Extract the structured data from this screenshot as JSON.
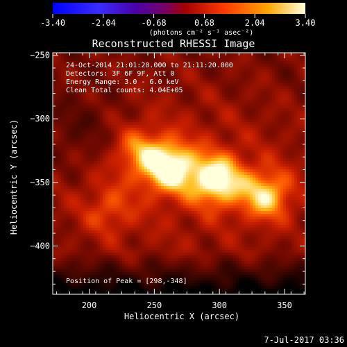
{
  "chart_data": {
    "type": "heatmap",
    "title": "Reconstructed RHESSI Image",
    "xlabel": "Heliocentric X (arcsec)",
    "ylabel": "Heliocentric Y (arcsec)",
    "xlim": [
      172,
      366
    ],
    "ylim": [
      -438,
      -248
    ],
    "x_ticks": [
      200,
      250,
      300,
      350
    ],
    "y_ticks": [
      -250,
      -300,
      -350,
      -400
    ],
    "colorbar": {
      "colormap": "red-temperature",
      "range": [
        -3.4,
        3.4
      ],
      "ticks": [
        "-3.40",
        "-2.04",
        "-0.68",
        "0.68",
        "2.04",
        "3.40"
      ],
      "unit": "(photons cm⁻² s⁻¹ asec⁻²)"
    },
    "info_lines": [
      "24-Oct-2014 21:01:20.000 to 21:11:20.000",
      "Detectors: 3F 6F 9F, Att 0",
      "Energy Range: 3.0 - 6.0 keV",
      "Clean    Total counts: 4.04E+05"
    ],
    "peak_text": "Position of Peak = [298,-348]",
    "peak": [
      298,
      -348
    ],
    "sources": [
      {
        "x": 262,
        "y": -338,
        "amplitude": 1.0
      },
      {
        "x": 298,
        "y": -348,
        "amplitude": 1.0
      },
      {
        "x": 336,
        "y": -360,
        "amplitude": 0.8
      },
      {
        "x": 238,
        "y": -326,
        "amplitude": 0.5
      },
      {
        "x": 215,
        "y": -372,
        "amplitude": 0.35
      }
    ],
    "date_stamp": "7-Jul-2017 03:36"
  }
}
